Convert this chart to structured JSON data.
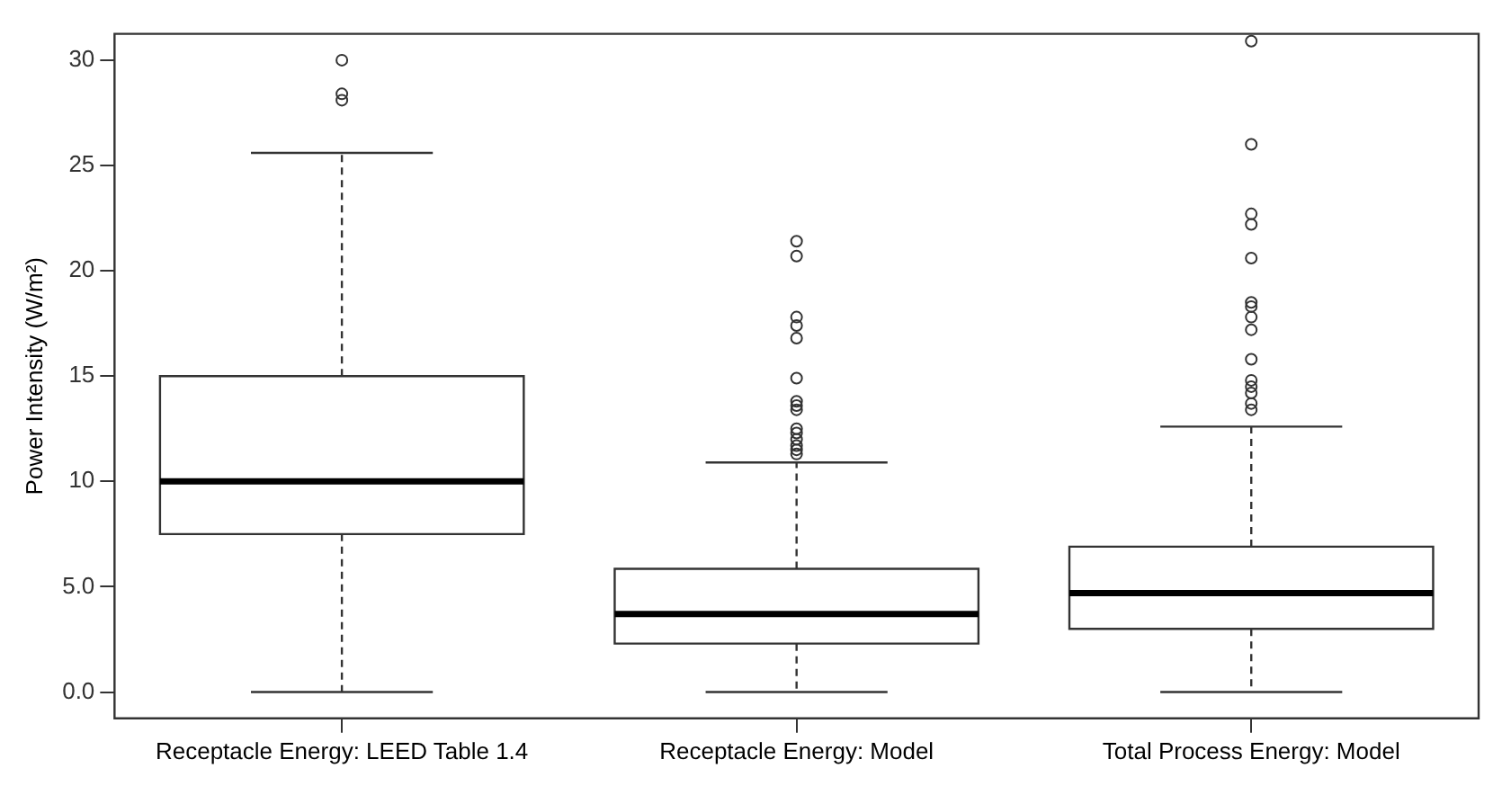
{
  "chart_data": {
    "type": "box",
    "ylabel": "Power Intensity (W/m²)",
    "categories": [
      "Receptacle Energy: LEED Table 1.4",
      "Receptacle Energy: Model",
      "Total Process Energy: Model"
    ],
    "boxes": [
      {
        "low": 0,
        "q1": 7.5,
        "median": 10,
        "q3": 15,
        "high": 25.6,
        "outliers": [
          30,
          28.4,
          28.1
        ]
      },
      {
        "low": 0,
        "q1": 2.3,
        "median": 3.7,
        "q3": 5.85,
        "high": 10.9,
        "outliers": [
          21.4,
          20.7,
          17.8,
          17.4,
          16.8,
          14.9,
          13.8,
          13.6,
          13.4,
          12.5,
          12.3,
          12.0,
          11.7,
          11.5,
          11.3
        ]
      },
      {
        "low": 0,
        "q1": 3.0,
        "median": 4.7,
        "q3": 6.9,
        "high": 12.6,
        "outliers": [
          30.9,
          26.0,
          22.7,
          22.2,
          20.6,
          18.5,
          18.3,
          17.8,
          17.2,
          15.8,
          14.8,
          14.5,
          14.2,
          13.7,
          13.4
        ]
      }
    ],
    "color": "#333333",
    "ylim": [
      -1.25,
      31.25
    ],
    "yticks": [
      {
        "value": 0,
        "label": "0.0"
      },
      {
        "value": 5,
        "label": "5.0"
      },
      10,
      15,
      20,
      25,
      30
    ],
    "grid": false,
    "legend": false,
    "marker": "circle"
  }
}
